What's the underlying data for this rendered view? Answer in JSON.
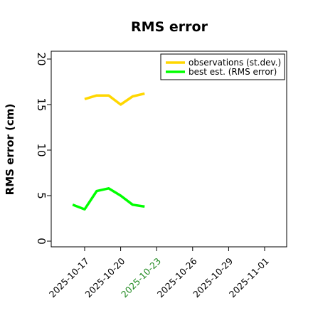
{
  "chart_data": {
    "type": "line",
    "title": "RMS error",
    "xlabel": "",
    "ylabel": "RMS error (cm)",
    "ylim": [
      0,
      21
    ],
    "yticks": [
      0,
      5,
      10,
      15,
      20
    ],
    "xlim": [
      "2025-10-14",
      "2025-11-02"
    ],
    "xticks": [
      "2025-10-17",
      "2025-10-20",
      "2025-10-23",
      "2025-10-26",
      "2025-10-29",
      "2025-11-01"
    ],
    "highlight_tick": "2025-10-23",
    "highlight_color": "#228b22",
    "grid": false,
    "legend_position": "top-right",
    "series": [
      {
        "name": "observations (st.dev.)",
        "color": "#ffd700",
        "x": [
          "2025-10-17",
          "2025-10-18",
          "2025-10-19",
          "2025-10-20",
          "2025-10-21",
          "2025-10-22"
        ],
        "values": [
          15.6,
          16.0,
          16.0,
          15.0,
          15.9,
          16.2
        ]
      },
      {
        "name": "best est. (RMS error)",
        "color": "#00ff00",
        "x": [
          "2025-10-16",
          "2025-10-17",
          "2025-10-18",
          "2025-10-19",
          "2025-10-20",
          "2025-10-21",
          "2025-10-22"
        ],
        "values": [
          4.0,
          3.5,
          5.5,
          5.8,
          5.0,
          4.0,
          3.8
        ]
      }
    ]
  }
}
